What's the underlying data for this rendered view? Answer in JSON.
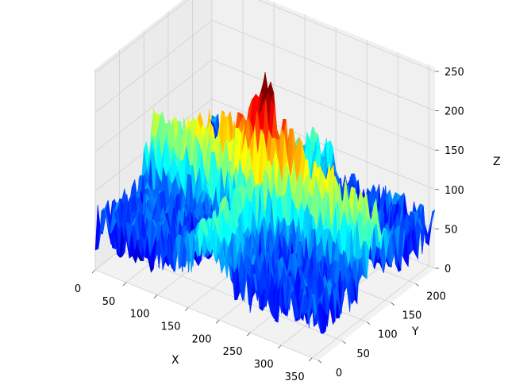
{
  "chart_data": {
    "type": "surface3d",
    "colormap": "jet",
    "title": "",
    "xlabel": "X",
    "ylabel": "Y",
    "zlabel": "Z",
    "xlim": [
      0,
      360
    ],
    "ylim": [
      0,
      240
    ],
    "zlim": [
      0,
      255
    ],
    "xticks": [
      "0",
      "50",
      "100",
      "150",
      "200",
      "250",
      "300",
      "350"
    ],
    "yticks": [
      "0",
      "50",
      "100",
      "150",
      "200"
    ],
    "zticks": [
      "0",
      "50",
      "100",
      "150",
      "200",
      "250"
    ],
    "grid": true,
    "surface_description_values": {
      "background_level_range": [
        20,
        110
      ],
      "ridge_along_x_at_y": 120,
      "ridge_level": 150,
      "peak_x": 180,
      "peak_y": 120,
      "peak_z": 230
    }
  }
}
